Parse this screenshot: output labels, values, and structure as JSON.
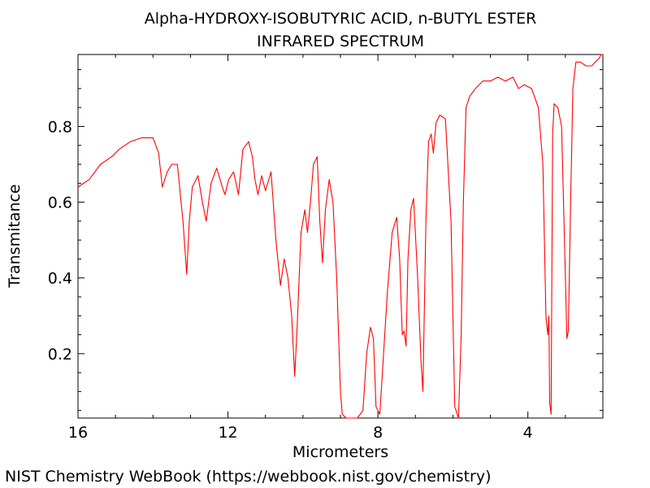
{
  "chart_data": {
    "type": "line",
    "title": "Alpha-HYDROXY-ISOBUTYRIC ACID, n-BUTYL ESTER",
    "subtitle": "INFRARED SPECTRUM",
    "xlabel": "Micrometers",
    "ylabel": "Transmitance",
    "xlim": [
      16,
      2
    ],
    "ylim": [
      0.03,
      0.99
    ],
    "x_ticks": [
      16,
      12,
      8,
      4
    ],
    "y_ticks": [
      0.2,
      0.4,
      0.6,
      0.8
    ],
    "x_tick_labels": [
      "16",
      "12",
      "8",
      "4"
    ],
    "y_tick_labels": [
      "0.2",
      "0.4",
      "0.6",
      "0.8"
    ],
    "grid": false,
    "legend": "none",
    "series": [
      {
        "color": "#ff0000",
        "x": [
          16.0,
          15.7,
          15.4,
          15.1,
          14.9,
          14.6,
          14.3,
          14.0,
          13.85,
          13.75,
          13.62,
          13.5,
          13.35,
          13.2,
          13.1,
          13.03,
          12.95,
          12.8,
          12.68,
          12.58,
          12.45,
          12.3,
          12.15,
          12.08,
          11.98,
          11.85,
          11.72,
          11.6,
          11.45,
          11.35,
          11.28,
          11.2,
          11.1,
          11.0,
          10.85,
          10.72,
          10.6,
          10.5,
          10.4,
          10.3,
          10.22,
          10.15,
          10.05,
          9.95,
          9.88,
          9.8,
          9.72,
          9.62,
          9.55,
          9.48,
          9.4,
          9.3,
          9.2,
          9.1,
          9.0,
          8.95,
          8.85,
          8.7,
          8.55,
          8.4,
          8.3,
          8.2,
          8.12,
          8.05,
          7.95,
          7.85,
          7.75,
          7.62,
          7.5,
          7.42,
          7.35,
          7.3,
          7.25,
          7.2,
          7.12,
          7.05,
          6.95,
          6.85,
          6.8,
          6.72,
          6.65,
          6.58,
          6.52,
          6.45,
          6.35,
          6.2,
          6.05,
          5.95,
          5.85,
          5.78,
          5.72,
          5.65,
          5.55,
          5.4,
          5.2,
          5.0,
          4.8,
          4.6,
          4.4,
          4.25,
          4.1,
          3.9,
          3.72,
          3.6,
          3.52,
          3.47,
          3.44,
          3.42,
          3.38,
          3.36,
          3.34,
          3.3,
          3.2,
          3.1,
          3.0,
          2.96,
          2.92,
          2.86,
          2.8,
          2.72,
          2.6,
          2.45,
          2.3,
          2.2,
          2.1,
          2.05,
          2.0
        ],
        "y": [
          0.64,
          0.66,
          0.7,
          0.72,
          0.74,
          0.76,
          0.77,
          0.77,
          0.73,
          0.64,
          0.68,
          0.7,
          0.7,
          0.55,
          0.41,
          0.55,
          0.64,
          0.67,
          0.6,
          0.55,
          0.65,
          0.69,
          0.64,
          0.62,
          0.66,
          0.68,
          0.62,
          0.74,
          0.76,
          0.72,
          0.66,
          0.62,
          0.67,
          0.63,
          0.68,
          0.5,
          0.38,
          0.45,
          0.4,
          0.3,
          0.14,
          0.28,
          0.52,
          0.58,
          0.52,
          0.6,
          0.7,
          0.72,
          0.55,
          0.44,
          0.58,
          0.66,
          0.6,
          0.4,
          0.1,
          0.04,
          0.03,
          0.03,
          0.03,
          0.05,
          0.2,
          0.27,
          0.24,
          0.06,
          0.04,
          0.2,
          0.36,
          0.52,
          0.56,
          0.45,
          0.25,
          0.26,
          0.22,
          0.45,
          0.58,
          0.61,
          0.42,
          0.18,
          0.1,
          0.55,
          0.76,
          0.78,
          0.73,
          0.81,
          0.83,
          0.82,
          0.55,
          0.06,
          0.03,
          0.25,
          0.6,
          0.85,
          0.88,
          0.9,
          0.92,
          0.92,
          0.93,
          0.92,
          0.93,
          0.9,
          0.91,
          0.9,
          0.85,
          0.7,
          0.3,
          0.25,
          0.3,
          0.07,
          0.04,
          0.4,
          0.78,
          0.86,
          0.85,
          0.8,
          0.4,
          0.24,
          0.26,
          0.6,
          0.9,
          0.97,
          0.97,
          0.96,
          0.96,
          0.97,
          0.98,
          0.99,
          0.99
        ]
      }
    ]
  },
  "footer": {
    "credit": "NIST Chemistry WebBook (https://webbook.nist.gov/chemistry)"
  }
}
